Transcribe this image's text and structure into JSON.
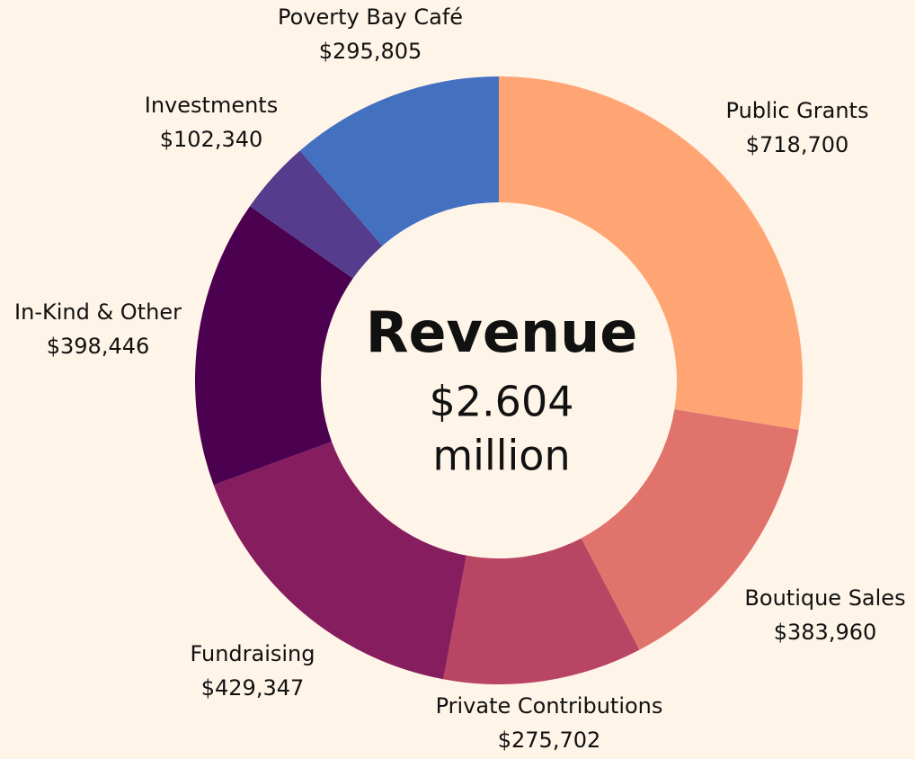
{
  "chart_data": {
    "type": "donut",
    "title": "Revenue",
    "center_value": "$2.604",
    "center_unit": "million",
    "categories": [
      "Public Grants",
      "Boutique Sales",
      "Private Contributions",
      "Fundraising",
      "In-Kind & Other",
      "Investments",
      "Poverty Bay Café"
    ],
    "values": [
      718700,
      383960,
      275702,
      429347,
      398446,
      102340,
      295805
    ],
    "value_labels": [
      "$718,700",
      "$383,960",
      "$275,702",
      "$429,347",
      "$398,446",
      "$102,340",
      "$295,805"
    ],
    "colors": [
      "#ffa574",
      "#e0736c",
      "#b84563",
      "#851d5e",
      "#4c0050",
      "#553c8d",
      "#4470c0"
    ]
  }
}
